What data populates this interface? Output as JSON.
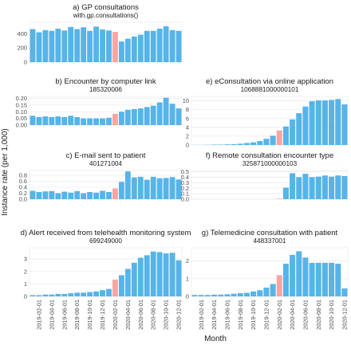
{
  "colors": {
    "bar": "#56b4e9",
    "highlight": "#f8a5a0",
    "panel_bg": "#ffffff",
    "grid": "#ebebeb",
    "highlight_index": 13
  },
  "axes": {
    "xlabel": "Month",
    "ylabel": "Instance rate (per 1,000)"
  },
  "x_tick_labels": [
    "2019-02-01",
    "2019-04-01",
    "2019-06-01",
    "2019-08-01",
    "2019-10-01",
    "2019-12-01",
    "2020-02-01",
    "2020-04-01",
    "2020-06-01",
    "2020-08-01",
    "2020-10-01",
    "2020-12-01"
  ],
  "months": [
    "2019-01",
    "2019-02",
    "2019-03",
    "2019-04",
    "2019-05",
    "2019-06",
    "2019-07",
    "2019-08",
    "2019-09",
    "2019-10",
    "2019-11",
    "2019-12",
    "2020-01",
    "2020-02",
    "2020-03",
    "2020-04",
    "2020-05",
    "2020-06",
    "2020-07",
    "2020-08",
    "2020-09",
    "2020-10",
    "2020-11",
    "2020-12"
  ],
  "chart_data": [
    {
      "type": "bar",
      "panel": "a",
      "title": "a) GP consultations",
      "subtitle": "with.gp.consultations()",
      "yticks": [
        0,
        200,
        400
      ],
      "ylim": [
        0,
        560
      ],
      "values": [
        465,
        420,
        450,
        440,
        470,
        445,
        495,
        465,
        490,
        440,
        500,
        460,
        445,
        425,
        290,
        330,
        360,
        385,
        440,
        440,
        470,
        505,
        450,
        440
      ]
    },
    {
      "type": "bar",
      "panel": "b",
      "title": "b) Encounter by computer link",
      "subtitle": "185320006",
      "yticks": [
        0.0,
        0.05,
        0.1,
        0.15,
        0.2
      ],
      "ylim": [
        0,
        0.215
      ],
      "values": [
        0.07,
        0.06,
        0.065,
        0.06,
        0.065,
        0.06,
        0.07,
        0.06,
        0.05,
        0.05,
        0.05,
        0.05,
        0.055,
        0.085,
        0.1,
        0.115,
        0.12,
        0.125,
        0.135,
        0.145,
        0.17,
        0.205,
        0.16,
        0.125
      ]
    },
    {
      "type": "bar",
      "panel": "c",
      "title": "c) E-mail sent to patient",
      "subtitle": "401271004",
      "yticks": [
        0.0,
        0.2,
        0.4,
        0.6,
        0.8
      ],
      "ylim": [
        0,
        0.96
      ],
      "values": [
        0.28,
        0.24,
        0.26,
        0.27,
        0.2,
        0.25,
        0.22,
        0.27,
        0.2,
        0.24,
        0.22,
        0.28,
        0.24,
        0.36,
        0.58,
        0.93,
        0.73,
        0.75,
        0.65,
        0.75,
        0.7,
        0.71,
        0.74,
        0.66
      ]
    },
    {
      "type": "bar",
      "panel": "d",
      "title": "d) Alert received from telehealth monitoring system",
      "subtitle": "699249000",
      "yticks": [
        0,
        1,
        2,
        3
      ],
      "ylim": [
        0,
        3.9
      ],
      "values": [
        0.1,
        0.1,
        0.15,
        0.15,
        0.2,
        0.2,
        0.25,
        0.3,
        0.3,
        0.35,
        0.4,
        0.5,
        0.6,
        1.35,
        1.7,
        2.2,
        2.7,
        3.1,
        3.3,
        3.6,
        3.55,
        3.45,
        3.5,
        2.9
      ]
    },
    {
      "type": "bar",
      "panel": "e",
      "title": "e) eConsultation via online application",
      "subtitle": "1068881000000101",
      "yticks": [
        0,
        2,
        4,
        6,
        8,
        10
      ],
      "ylim": [
        0,
        11.0
      ],
      "values": [
        0.02,
        0.02,
        0.05,
        0.1,
        0.1,
        0.15,
        0.2,
        0.3,
        0.45,
        0.6,
        0.9,
        1.4,
        2.1,
        3.3,
        4.2,
        5.8,
        7.2,
        8.7,
        9.9,
        10.1,
        10.1,
        10.2,
        10.4,
        9.2
      ]
    },
    {
      "type": "bar",
      "panel": "f",
      "title": "f) Remote consultation encounter type",
      "subtitle": "325871000000103",
      "yticks": [
        0.0,
        0.1,
        0.2,
        0.3,
        0.4,
        0.5
      ],
      "ylim": [
        0,
        0.52
      ],
      "values": [
        0,
        0,
        0,
        0,
        0,
        0,
        0,
        0,
        0,
        0,
        0,
        0,
        0,
        0.01,
        0.21,
        0.47,
        0.4,
        0.46,
        0.4,
        0.41,
        0.43,
        0.41,
        0.43,
        0.42
      ]
    },
    {
      "type": "bar",
      "panel": "g",
      "title": "g) Telemedicine consultation with patient",
      "subtitle": "448337001",
      "yticks": [
        0,
        1,
        2
      ],
      "ylim": [
        0,
        2.75
      ],
      "values": [
        0.08,
        0.08,
        0.08,
        0.1,
        0.1,
        0.12,
        0.15,
        0.18,
        0.2,
        0.28,
        0.35,
        0.5,
        0.7,
        1.2,
        1.85,
        2.35,
        2.55,
        2.2,
        1.9,
        1.9,
        1.9,
        1.9,
        1.85,
        0.45
      ]
    }
  ]
}
